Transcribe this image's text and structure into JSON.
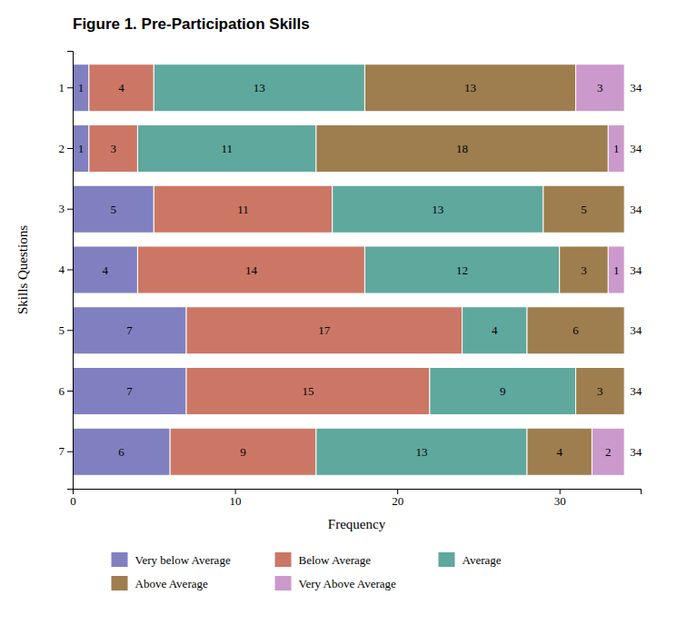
{
  "chart_data": {
    "type": "bar",
    "orientation": "horizontal",
    "stacked": true,
    "data_labels": true,
    "legend": "bottom",
    "title": "Figure 1. Pre-Participation Skills",
    "xlabel": "Frequency",
    "ylabel": "Skills Questions",
    "categories": [
      1,
      2,
      3,
      4,
      5,
      6,
      7
    ],
    "series": [
      {
        "name": "Very below Average",
        "color": "#8080c0",
        "values": [
          1,
          1,
          5,
          4,
          7,
          7,
          6
        ]
      },
      {
        "name": "Below Average",
        "color": "#cc7766",
        "values": [
          4,
          3,
          11,
          14,
          17,
          15,
          9
        ]
      },
      {
        "name": "Average",
        "color": "#5fa89e",
        "values": [
          13,
          11,
          13,
          12,
          4,
          9,
          13
        ]
      },
      {
        "name": "Above Average",
        "color": "#9e7d4e",
        "values": [
          13,
          18,
          5,
          3,
          6,
          3,
          4
        ]
      },
      {
        "name": "Very Above Average",
        "color": "#cc99cc",
        "values": [
          3,
          1,
          0,
          1,
          0,
          0,
          2
        ]
      }
    ],
    "totals": [
      34,
      34,
      34,
      34,
      34,
      34,
      34
    ],
    "xlim": [
      0,
      35
    ],
    "xticks": [
      0,
      10,
      20,
      30
    ]
  }
}
